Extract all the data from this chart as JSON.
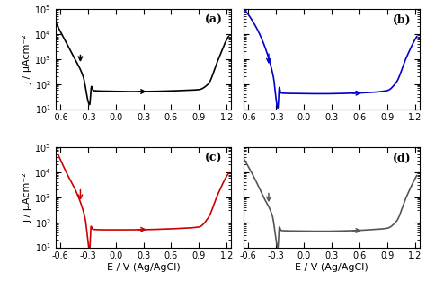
{
  "colors": [
    "black",
    "#0000cc",
    "#cc0000",
    "#555555"
  ],
  "labels": [
    "(a)",
    "(b)",
    "(c)",
    "(d)"
  ],
  "xlim": [
    -0.65,
    1.25
  ],
  "ylim_log": [
    10,
    100000.0
  ],
  "xlabel": "E / V (Ag/AgCl)",
  "ylabel": "j / μAcm⁻²",
  "xticks": [
    -0.6,
    -0.3,
    0.0,
    0.3,
    0.6,
    0.9,
    1.2
  ],
  "yticks": [
    10,
    100,
    1000,
    10000,
    100000
  ],
  "background": "#ffffff"
}
